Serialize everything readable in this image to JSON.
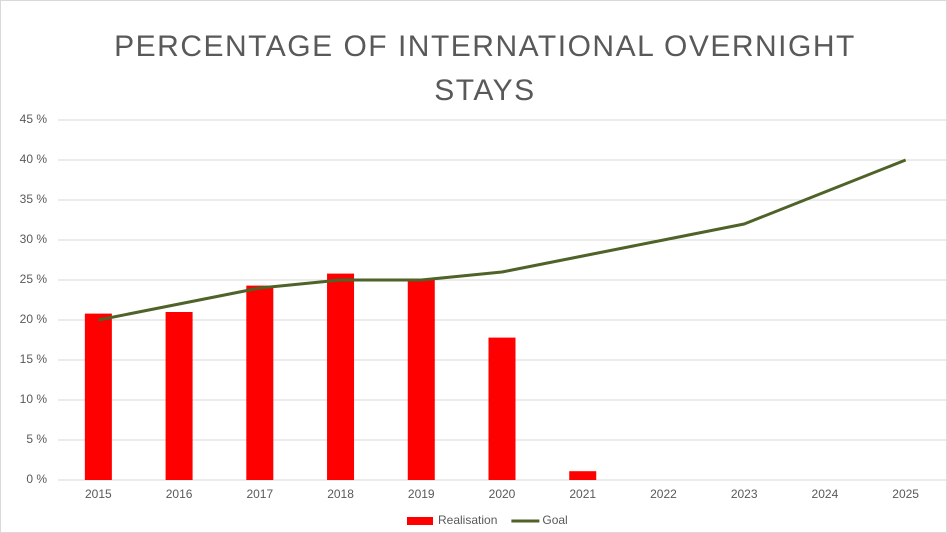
{
  "chart_data": {
    "type": "combo",
    "title": "PERCENTAGE OF INTERNATIONAL OVERNIGHT STAYS",
    "categories": [
      "2015",
      "2016",
      "2017",
      "2018",
      "2019",
      "2020",
      "2021",
      "2022",
      "2023",
      "2024",
      "2025"
    ],
    "series": [
      {
        "name": "Realisation",
        "type": "bar",
        "color": "#ff0000",
        "values": [
          20.8,
          21,
          24.3,
          25.8,
          25.1,
          17.8,
          1.1,
          null,
          null,
          null,
          null
        ]
      },
      {
        "name": "Goal",
        "type": "line",
        "color": "#4f6228",
        "values": [
          20,
          22,
          24,
          25,
          25,
          26,
          28,
          30,
          32,
          36,
          40
        ]
      }
    ],
    "ylim": [
      0,
      45
    ],
    "yticks": [
      {
        "value": 0,
        "label": "0 %"
      },
      {
        "value": 5,
        "label": "5 %"
      },
      {
        "value": 10,
        "label": "10 %"
      },
      {
        "value": 15,
        "label": "15 %"
      },
      {
        "value": 20,
        "label": "20 %"
      },
      {
        "value": 25,
        "label": "25 %"
      },
      {
        "value": 30,
        "label": "30 %"
      },
      {
        "value": 35,
        "label": "35 %"
      },
      {
        "value": 40,
        "label": "40 %"
      },
      {
        "value": 45,
        "label": "45 %"
      }
    ],
    "grid": true,
    "legend": "bottom"
  }
}
